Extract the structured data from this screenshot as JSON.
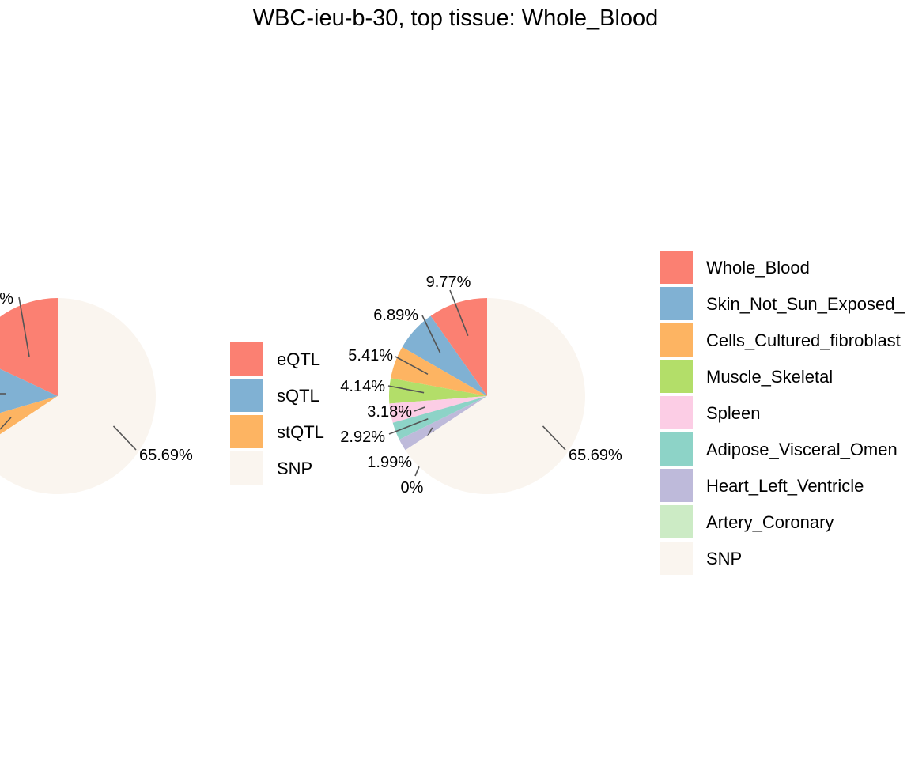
{
  "chart_data": [
    {
      "type": "pie",
      "title": "WBC-ieu-b-30, top tissue: Whole_Blood",
      "categories": [
        "eQTL",
        "sQTL",
        "stQTL",
        "SNP"
      ],
      "values": [
        18.0,
        11.5,
        4.81,
        65.69
      ],
      "visible_labels": [
        "",
        "",
        "",
        "65.69%"
      ],
      "partial_label": "%",
      "colors": [
        "#FB8072",
        "#80B1D3",
        "#FDB462",
        "#FAF5EF"
      ],
      "legend": {
        "placement": "right",
        "entries": [
          "eQTL",
          "sQTL",
          "stQTL",
          "SNP"
        ]
      }
    },
    {
      "type": "pie",
      "categories": [
        "Whole_Blood",
        "Skin_Not_Sun_Exposed_",
        "Cells_Cultured_fibroblast",
        "Muscle_Skeletal",
        "Spleen",
        "Adipose_Visceral_Omen",
        "Heart_Left_Ventricle",
        "Artery_Coronary",
        "SNP"
      ],
      "values": [
        9.77,
        6.89,
        5.41,
        4.14,
        3.18,
        2.92,
        1.99,
        0,
        65.69
      ],
      "labels": [
        "9.77%",
        "6.89%",
        "5.41%",
        "4.14%",
        "3.18%",
        "2.92%",
        "1.99%",
        "0%",
        "65.69%"
      ],
      "colors": [
        "#FB8072",
        "#80B1D3",
        "#FDB462",
        "#B3DE69",
        "#FCCDE5",
        "#8DD3C7",
        "#BEBADA",
        "#CCEBC5",
        "#FAF5EF"
      ],
      "legend": {
        "placement": "right",
        "entries": [
          "Whole_Blood",
          "Skin_Not_Sun_Exposed_",
          "Cells_Cultured_fibroblast",
          "Muscle_Skeletal",
          "Spleen",
          "Adipose_Visceral_Omen",
          "Heart_Left_Ventricle",
          "Artery_Coronary",
          "SNP"
        ]
      }
    }
  ]
}
